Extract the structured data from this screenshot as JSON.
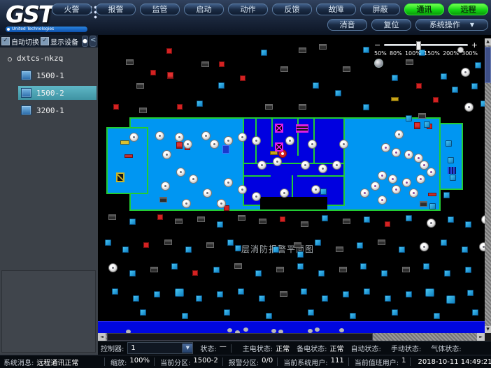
{
  "header": {
    "logo_text": "GST",
    "logo_tagline": "United Technologies",
    "buttons_row1": [
      {
        "label": "火警"
      },
      {
        "label": "报警"
      },
      {
        "label": "监管"
      },
      {
        "label": "启动"
      },
      {
        "label": "动作"
      },
      {
        "label": "反馈"
      },
      {
        "label": "故障"
      },
      {
        "label": "屏蔽"
      },
      {
        "label": "通讯",
        "green": true
      },
      {
        "label": "远程",
        "green": true
      }
    ],
    "buttons_row2": [
      {
        "label": "消音"
      },
      {
        "label": "复位"
      }
    ],
    "system_menu_label": "系统操作"
  },
  "sidebar": {
    "auto_switch_label": "自动切换",
    "show_devices_label": "显示设备",
    "tree_root": "dxtcs-nkzq",
    "tree_items": [
      {
        "label": "1500-1",
        "selected": false
      },
      {
        "label": "1500-2",
        "selected": true
      },
      {
        "label": "3200-1",
        "selected": false
      }
    ]
  },
  "map": {
    "zoom_tick_labels": [
      "50%",
      "80%",
      "100%",
      "150%",
      "200%",
      "300%"
    ],
    "zoom_value": "100%",
    "plan_label": "层消防报警平面图",
    "colors": {
      "plan_fill": "#0096f2",
      "core_fill": "#0000e0",
      "outline": "#22cc33"
    },
    "devices": [
      [
        "r",
        98,
        14
      ],
      [
        "r",
        173,
        33
      ],
      [
        "rp",
        99,
        48
      ],
      [
        "b",
        172,
        63
      ],
      [
        "b",
        233,
        16
      ],
      [
        "d",
        287,
        13
      ],
      [
        "d",
        316,
        8
      ],
      [
        "b",
        379,
        12
      ],
      [
        "b",
        420,
        52
      ],
      [
        "b",
        459,
        16
      ],
      [
        "wc",
        514,
        12
      ],
      [
        "det",
        519,
        42
      ],
      [
        "b",
        539,
        34
      ],
      [
        "r",
        455,
        64
      ],
      [
        "b",
        506,
        69
      ],
      [
        "b",
        534,
        64
      ],
      [
        "r",
        479,
        84
      ],
      [
        "det",
        524,
        92
      ],
      [
        "b",
        547,
        89
      ],
      [
        "d",
        55,
        64
      ],
      [
        "r",
        22,
        94
      ],
      [
        "d",
        59,
        99
      ],
      [
        "r",
        113,
        94
      ],
      [
        "b",
        141,
        89
      ],
      [
        "d",
        239,
        94
      ],
      [
        "d",
        287,
        94
      ],
      [
        "b",
        339,
        74
      ],
      [
        "b",
        379,
        94
      ],
      [
        "y",
        419,
        84
      ],
      [
        "r",
        203,
        53
      ],
      [
        "d",
        148,
        33
      ],
      [
        "d",
        261,
        40
      ],
      [
        "b",
        307,
        63
      ],
      [
        "d",
        350,
        40
      ],
      [
        "d",
        440,
        30
      ],
      [
        "b",
        490,
        50
      ],
      [
        "d",
        40,
        30
      ],
      [
        "r",
        75,
        45
      ],
      [
        "ys",
        32,
        146
      ],
      [
        "rs",
        38,
        166
      ],
      [
        "yb",
        26,
        192
      ],
      [
        "det",
        45,
        135
      ],
      [
        "rp",
        112,
        148
      ],
      [
        "r",
        124,
        152
      ],
      [
        "bm",
        178,
        153
      ],
      [
        "y",
        246,
        161
      ],
      [
        "rb",
        258,
        159
      ],
      [
        "d",
        88,
        227
      ],
      [
        "d",
        170,
        232
      ],
      [
        "r",
        180,
        239
      ],
      [
        "fan",
        253,
        122
      ],
      [
        "fan",
        253,
        149
      ],
      [
        "st",
        283,
        123
      ],
      [
        "b",
        318,
        215
      ],
      [
        "r",
        470,
        122
      ],
      [
        "d",
        458,
        107
      ],
      [
        "d",
        460,
        233
      ],
      [
        "rs",
        472,
        221
      ],
      [
        "b",
        440,
        110
      ],
      [
        "rp",
        452,
        120
      ],
      [
        "det",
        424,
        131
      ],
      [
        "b",
        466,
        119
      ],
      [
        "b",
        497,
        146
      ],
      [
        "b",
        500,
        170
      ],
      [
        "b",
        503,
        195
      ],
      [
        "b",
        494,
        220
      ],
      [
        "b",
        474,
        236
      ],
      [
        "gr",
        500,
        184
      ],
      [
        "det",
        82,
        133
      ],
      [
        "det",
        110,
        135
      ],
      [
        "det",
        122,
        145
      ],
      [
        "det",
        92,
        160
      ],
      [
        "det",
        148,
        133
      ],
      [
        "det",
        160,
        145
      ],
      [
        "det",
        180,
        140
      ],
      [
        "det",
        200,
        135
      ],
      [
        "det",
        112,
        185
      ],
      [
        "det",
        130,
        195
      ],
      [
        "det",
        90,
        205
      ],
      [
        "det",
        180,
        200
      ],
      [
        "det",
        150,
        215
      ],
      [
        "det",
        200,
        210
      ],
      [
        "det",
        170,
        230
      ],
      [
        "det",
        120,
        230
      ],
      [
        "det",
        220,
        140
      ],
      [
        "det",
        268,
        140
      ],
      [
        "det",
        300,
        145
      ],
      [
        "det",
        345,
        145
      ],
      [
        "det",
        228,
        175
      ],
      [
        "det",
        250,
        170
      ],
      [
        "det",
        290,
        175
      ],
      [
        "det",
        315,
        180
      ],
      [
        "det",
        335,
        175
      ],
      [
        "det",
        220,
        220
      ],
      [
        "det",
        260,
        215
      ],
      [
        "det",
        305,
        210
      ],
      [
        "det2",
        405,
        150
      ],
      [
        "det2",
        420,
        157
      ],
      [
        "det2",
        438,
        160
      ],
      [
        "det2",
        452,
        165
      ],
      [
        "det2",
        460,
        175
      ],
      [
        "det2",
        400,
        190
      ],
      [
        "det2",
        415,
        195
      ],
      [
        "det2",
        435,
        200
      ],
      [
        "det2",
        455,
        195
      ],
      [
        "det2",
        390,
        205
      ],
      [
        "det2",
        420,
        210
      ],
      [
        "det2",
        445,
        215
      ],
      [
        "det2",
        470,
        185
      ],
      [
        "det2",
        375,
        215
      ],
      [
        "det2",
        400,
        225
      ],
      [
        "d",
        15,
        252
      ],
      [
        "b",
        45,
        258
      ],
      [
        "r",
        85,
        252
      ],
      [
        "d",
        110,
        258
      ],
      [
        "d",
        142,
        255
      ],
      [
        "b",
        170,
        262
      ],
      [
        "d",
        200,
        253
      ],
      [
        "d",
        230,
        258
      ],
      [
        "r",
        260,
        255
      ],
      [
        "d",
        290,
        262
      ],
      [
        "b",
        320,
        253
      ],
      [
        "d",
        350,
        258
      ],
      [
        "b",
        380,
        255
      ],
      [
        "r",
        410,
        262
      ],
      [
        "b",
        440,
        253
      ],
      [
        "det",
        470,
        258
      ],
      [
        "b",
        500,
        255
      ],
      [
        "b",
        525,
        262
      ],
      [
        "det",
        548,
        253
      ],
      [
        "b",
        10,
        288
      ],
      [
        "b",
        35,
        298
      ],
      [
        "r",
        65,
        292
      ],
      [
        "d",
        95,
        288
      ],
      [
        "b",
        125,
        298
      ],
      [
        "d",
        155,
        292
      ],
      [
        "b",
        185,
        288
      ],
      [
        "b",
        250,
        298
      ],
      [
        "d",
        280,
        292
      ],
      [
        "b",
        310,
        288
      ],
      [
        "d",
        340,
        298
      ],
      [
        "b",
        370,
        292
      ],
      [
        "d",
        400,
        288
      ],
      [
        "b",
        430,
        298
      ],
      [
        "det",
        460,
        292
      ],
      [
        "b",
        490,
        288
      ],
      [
        "b",
        520,
        298
      ],
      [
        "det",
        545,
        292
      ],
      [
        "det",
        15,
        322
      ],
      [
        "b",
        45,
        332
      ],
      [
        "d",
        75,
        327
      ],
      [
        "b",
        105,
        322
      ],
      [
        "r",
        135,
        332
      ],
      [
        "b",
        165,
        327
      ],
      [
        "d",
        195,
        322
      ],
      [
        "b",
        225,
        332
      ],
      [
        "d",
        255,
        327
      ],
      [
        "b",
        285,
        322
      ],
      [
        "b",
        315,
        332
      ],
      [
        "d",
        345,
        327
      ],
      [
        "b",
        375,
        322
      ],
      [
        "b",
        405,
        332
      ],
      [
        "d",
        435,
        327
      ],
      [
        "b",
        465,
        322
      ],
      [
        "b",
        495,
        332
      ],
      [
        "b",
        525,
        327
      ],
      [
        "b",
        20,
        358
      ],
      [
        "b",
        50,
        368
      ],
      [
        "b",
        80,
        362
      ],
      [
        "b2",
        110,
        358
      ],
      [
        "b",
        140,
        368
      ],
      [
        "b",
        170,
        362
      ],
      [
        "b",
        200,
        358
      ],
      [
        "b",
        230,
        368
      ],
      [
        "d",
        260,
        362
      ],
      [
        "b",
        290,
        358
      ],
      [
        "b",
        320,
        368
      ],
      [
        "b",
        350,
        362
      ],
      [
        "b",
        380,
        358
      ],
      [
        "b",
        410,
        368
      ],
      [
        "b",
        440,
        362
      ],
      [
        "b2",
        468,
        358
      ],
      [
        "b2",
        498,
        368
      ],
      [
        "b",
        528,
        360
      ],
      [
        "b",
        60,
        388
      ],
      [
        "b",
        120,
        393
      ],
      [
        "b",
        180,
        388
      ],
      [
        "b",
        240,
        393
      ],
      [
        "b",
        300,
        388
      ],
      [
        "b",
        360,
        393
      ],
      [
        "b",
        420,
        388
      ],
      [
        "b",
        480,
        393
      ],
      [
        "b",
        535,
        388
      ],
      [
        "b",
        196,
        296
      ],
      [
        "b",
        285,
        305
      ],
      [
        "g",
        185,
        415
      ],
      [
        "g",
        196,
        418
      ],
      [
        "g",
        208,
        414
      ],
      [
        "g",
        248,
        416
      ],
      [
        "g",
        258,
        417
      ],
      [
        "g",
        300,
        416
      ],
      [
        "g",
        310,
        414
      ],
      [
        "g",
        345,
        415
      ],
      [
        "g",
        40,
        417
      ]
    ]
  },
  "status_bar": {
    "controller_label": "控制器:",
    "controller_value": "1",
    "status_label": "状态:",
    "status_value": "—",
    "fields_row1": [
      {
        "label": "主电状态:",
        "value": "正常"
      },
      {
        "label": "备电状态:",
        "value": "正常"
      },
      {
        "label": "自动状态:",
        "value": ""
      },
      {
        "label": "手动状态:",
        "value": ""
      },
      {
        "label": "气体状态:",
        "value": ""
      }
    ],
    "system_message_label": "系统消息:",
    "system_message": "远程通讯正常",
    "fields_row2": [
      {
        "label": "缩放:",
        "value": "100%"
      },
      {
        "label": "当前分区:",
        "value": "1500-2"
      },
      {
        "label": "报警分区:",
        "value": "0/0"
      },
      {
        "label": "当前系统用户:",
        "value": "111"
      },
      {
        "label": "当前值班用户:",
        "value": "1"
      }
    ],
    "datetime": "2018-10-11 14:49:21"
  },
  "icons": {
    "dropdown_arrow": "▼",
    "scroll_up": "▲",
    "scroll_down": "▼",
    "scroll_left": "◄",
    "scroll_right": "►",
    "collapse_left": "<",
    "checkmark": "✓",
    "minus": "−",
    "plus": "+",
    "dot": "●"
  }
}
